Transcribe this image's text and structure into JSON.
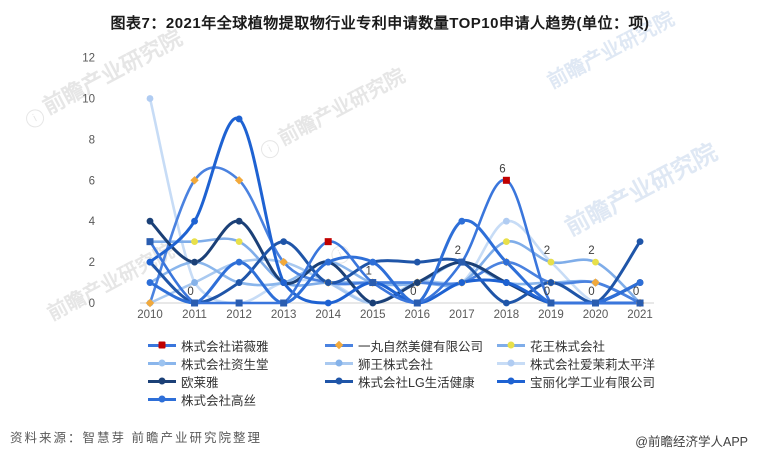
{
  "header": {
    "title": "图表7：2021年全球植物提取物行业专利申请数量TOP10申请人趋势(单位：项)"
  },
  "footer": {
    "source": "资料来源：智慧芽 前瞻产业研究院整理",
    "credit": "@前瞻经济学人APP"
  },
  "watermark": {
    "text": "前瞻产业研究院"
  },
  "chart_data": {
    "type": "line",
    "title": "2021年全球植物提取物行业专利申请数量TOP10申请人趋势",
    "unit": "项",
    "x": [
      2010,
      2011,
      2012,
      2013,
      2014,
      2015,
      2016,
      2017,
      2018,
      2019,
      2020,
      2021
    ],
    "ylim": [
      0,
      12
    ],
    "yticks": [
      0,
      2,
      4,
      6,
      8,
      10,
      12
    ],
    "grid": false,
    "legend_position": "bottom",
    "axis_color": "#d9d9d9",
    "tick_color": "#595959",
    "series": [
      {
        "name": "株式会社诺薇雅",
        "line_color": "#3a76dc",
        "marker": "square",
        "marker_color": "#2a5db0",
        "highlight_color": "#c00000",
        "highlight_years": [
          2014,
          2018
        ],
        "width": 2.6,
        "values": [
          3,
          0,
          0,
          0,
          3,
          1,
          0,
          2,
          6,
          0,
          0,
          0
        ]
      },
      {
        "name": "一丸自然美健有限公司",
        "line_color": "#4a82e0",
        "marker": "diamond",
        "marker_color": "#f2a93b",
        "width": 2.6,
        "values": [
          0,
          6,
          6,
          2,
          1,
          1,
          1,
          1,
          2,
          1,
          1,
          0
        ]
      },
      {
        "name": "花王株式会社",
        "line_color": "#7fade9",
        "marker": "circle",
        "marker_color": "#e8e04a",
        "width": 2.6,
        "values": [
          3,
          3,
          3,
          1,
          1,
          1,
          1,
          1,
          3,
          2,
          2,
          0
        ]
      },
      {
        "name": "株式会社资生堂",
        "line_color": "#8ab6ec",
        "marker": "circle",
        "marker_color": "#9cc3f0",
        "width": 2.6,
        "values": [
          1,
          2,
          1,
          1,
          2,
          1,
          1,
          2,
          1,
          1,
          1,
          0
        ]
      },
      {
        "name": "狮王株式会社",
        "line_color": "#a9c9f0",
        "marker": "circle",
        "marker_color": "#85b2e9",
        "width": 2.6,
        "values": [
          0,
          1,
          2,
          2,
          1,
          0,
          1,
          1,
          2,
          1,
          1,
          0
        ]
      },
      {
        "name": "株式会社爱茉莉太平洋",
        "line_color": "#c7dcf6",
        "marker": "circle",
        "marker_color": "#b0ccf2",
        "width": 2.6,
        "values": [
          10,
          1,
          0,
          1,
          1,
          0,
          1,
          1,
          4,
          2,
          0,
          0
        ]
      },
      {
        "name": "欧莱雅",
        "line_color": "#1b4077",
        "marker": "circle",
        "marker_color": "#1b4077",
        "width": 3,
        "values": [
          4,
          2,
          4,
          1,
          2,
          0,
          1,
          2,
          1,
          0,
          0,
          1
        ]
      },
      {
        "name": "株式会社LG生活健康",
        "line_color": "#1f55a8",
        "marker": "circle",
        "marker_color": "#1f55a8",
        "width": 3,
        "values": [
          2,
          0,
          1,
          3,
          1,
          2,
          2,
          2,
          0,
          1,
          0,
          3
        ]
      },
      {
        "name": "宝丽化学工业有限公司",
        "line_color": "#1e62d2",
        "marker": "circle",
        "marker_color": "#1e62d2",
        "width": 3,
        "values": [
          2,
          4,
          9,
          1,
          0,
          1,
          0,
          1,
          1,
          0,
          0,
          0
        ]
      },
      {
        "name": "株式会社高丝",
        "line_color": "#2e6fd8",
        "marker": "circle",
        "marker_color": "#2e6fd8",
        "width": 3,
        "values": [
          1,
          0,
          2,
          0,
          2,
          2,
          0,
          4,
          2,
          0,
          0,
          1
        ]
      }
    ],
    "annotations": [
      {
        "series": "株式会社诺薇雅",
        "year": 2011,
        "text": "0"
      },
      {
        "series": "株式会社诺薇雅",
        "year": 2015,
        "text": "1"
      },
      {
        "series": "株式会社诺薇雅",
        "year": 2016,
        "text": "0"
      },
      {
        "series": "株式会社诺薇雅",
        "year": 2017,
        "text": "2"
      },
      {
        "series": "株式会社诺薇雅",
        "year": 2018,
        "text": "6"
      },
      {
        "series": "株式会社诺薇雅",
        "year": 2019,
        "text": "0"
      },
      {
        "series": "株式会社诺薇雅",
        "year": 2020,
        "text": "0"
      },
      {
        "series": "株式会社诺薇雅",
        "year": 2021,
        "text": "0"
      },
      {
        "series": "花王株式会社",
        "year": 2019,
        "text": "2"
      },
      {
        "series": "花王株式会社",
        "year": 2020,
        "text": "2"
      }
    ]
  }
}
